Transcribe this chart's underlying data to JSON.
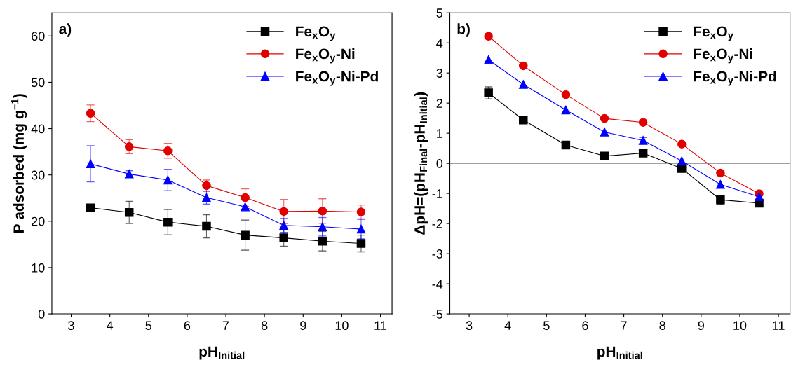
{
  "chart_data": [
    {
      "type": "line",
      "xlabel": "pH$_{Initial}$",
      "ylabel": "P adsorbed (mg g$^{−1}$)",
      "annotations": [
        "a)"
      ],
      "xlim": [
        2.5,
        11.3
      ],
      "xticks": [
        3,
        4,
        5,
        6,
        7,
        8,
        9,
        10,
        11
      ],
      "ylim": [
        0,
        65
      ],
      "yticks": [
        0,
        10,
        20,
        30,
        40,
        50,
        60
      ],
      "grid": false,
      "legend": "top right",
      "series": [
        {
          "name": "Fe$_{x}$O$_{y}$",
          "color": "#000000",
          "marker": "square",
          "x": [
            3.5,
            4.5,
            5.5,
            6.5,
            7.5,
            8.5,
            9.5,
            10.5
          ],
          "values": [
            22.9,
            21.9,
            19.8,
            18.9,
            17.0,
            16.4,
            15.7,
            15.2
          ],
          "errors": [
            null,
            2.4,
            2.75,
            2.5,
            3.25,
            1.8,
            2.1,
            1.8
          ]
        },
        {
          "name": "Fe$_{x}$O$_{y}$-Ni",
          "color": "#e00000",
          "marker": "circle",
          "x": [
            3.5,
            4.5,
            5.5,
            6.5,
            7.5,
            8.5,
            9.5,
            10.5
          ],
          "values": [
            43.3,
            36.1,
            35.2,
            27.7,
            25.1,
            22.1,
            22.2,
            22.0
          ],
          "errors": [
            1.8,
            1.5,
            1.6,
            1.2,
            1.9,
            2.6,
            2.65,
            1.5
          ]
        },
        {
          "name": "Fe$_{x}$O$_{y}$-Ni-Pd",
          "color": "#0000ff",
          "marker": "triangle",
          "x": [
            3.5,
            4.5,
            5.5,
            6.5,
            7.5,
            8.5,
            9.5,
            10.5
          ],
          "values": [
            32.4,
            30.2,
            28.9,
            25.1,
            23.1,
            19.1,
            18.8,
            18.3
          ],
          "errors": [
            3.9,
            0.7,
            2.3,
            1.4,
            null,
            1.5,
            2.0,
            2.1
          ]
        }
      ]
    },
    {
      "type": "line",
      "xlabel": "pH$_{Initial}$",
      "ylabel": "ΔpH=(pH$_{Final}$-pH$_{Initial}$)",
      "annotations": [
        "b)"
      ],
      "xlim": [
        2.5,
        11.3
      ],
      "xticks": [
        3,
        4,
        5,
        6,
        7,
        8,
        9,
        10,
        11
      ],
      "ylim": [
        -5,
        5
      ],
      "yticks": [
        -5,
        -4,
        -3,
        -2,
        -1,
        0,
        1,
        2,
        3,
        4,
        5
      ],
      "grid": false,
      "legend": "top right",
      "ref_lines": [
        {
          "axis": "y",
          "value": 0,
          "color": "#808080"
        }
      ],
      "series": [
        {
          "name": "Fe$_{x}$O$_{y}$",
          "color": "#000000",
          "marker": "square",
          "x": [
            3.5,
            4.4,
            5.5,
            6.5,
            7.5,
            8.5,
            9.5,
            10.5
          ],
          "values": [
            2.34,
            1.44,
            0.61,
            0.24,
            0.34,
            -0.17,
            -1.21,
            -1.32
          ],
          "errors": [
            0.2,
            null,
            0.1,
            null,
            null,
            null,
            0.15,
            null
          ]
        },
        {
          "name": "Fe$_{x}$O$_{y}$-Ni",
          "color": "#e00000",
          "marker": "circle",
          "x": [
            3.5,
            4.4,
            5.5,
            6.5,
            7.5,
            8.5,
            9.5,
            10.5
          ],
          "values": [
            4.22,
            3.24,
            2.28,
            1.49,
            1.36,
            0.64,
            -0.32,
            -1.01
          ]
        },
        {
          "name": "Fe$_{x}$O$_{y}$-Ni-Pd",
          "color": "#0000ff",
          "marker": "triangle",
          "x": [
            3.5,
            4.4,
            5.5,
            6.5,
            7.5,
            8.5,
            9.5,
            10.5
          ],
          "values": [
            3.44,
            2.62,
            1.77,
            1.04,
            0.76,
            0.08,
            -0.7,
            -1.11
          ],
          "errors": [
            null,
            null,
            null,
            null,
            0.1,
            null,
            null,
            null
          ]
        }
      ]
    }
  ]
}
